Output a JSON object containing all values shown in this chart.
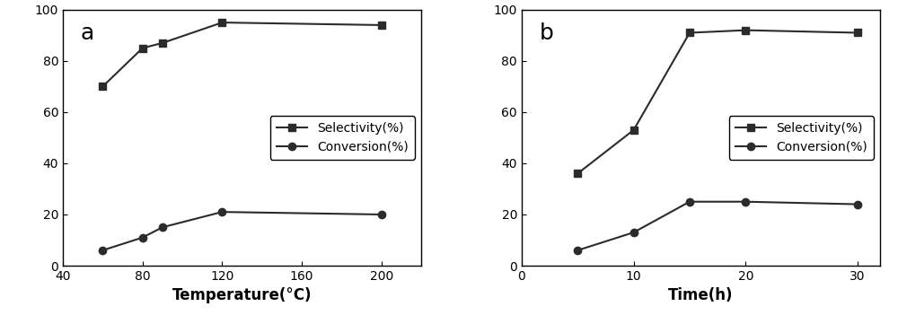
{
  "chart_a": {
    "label": "a",
    "xlabel": "Temperature(°C)",
    "selectivity_x": [
      60,
      80,
      90,
      120,
      200
    ],
    "selectivity_y": [
      70,
      85,
      87,
      95,
      94
    ],
    "conversion_x": [
      60,
      80,
      90,
      120,
      200
    ],
    "conversion_y": [
      6,
      11,
      15,
      21,
      20
    ],
    "xlim": [
      40,
      220
    ],
    "xticks": [
      40,
      80,
      120,
      160,
      200
    ],
    "ylim": [
      0,
      100
    ],
    "yticks": [
      0,
      20,
      40,
      60,
      80,
      100
    ]
  },
  "chart_b": {
    "label": "b",
    "xlabel": "Time(h)",
    "selectivity_x": [
      5,
      10,
      15,
      20,
      30
    ],
    "selectivity_y": [
      36,
      53,
      91,
      92,
      91
    ],
    "conversion_x": [
      5,
      10,
      15,
      20,
      30
    ],
    "conversion_y": [
      6,
      13,
      25,
      25,
      24
    ],
    "xlim": [
      0,
      32
    ],
    "xticks": [
      0,
      10,
      20,
      30
    ],
    "ylim": [
      0,
      100
    ],
    "yticks": [
      0,
      20,
      40,
      60,
      80,
      100
    ]
  },
  "line_color": "#2b2b2b",
  "selectivity_marker": "s",
  "conversion_marker": "o",
  "marker_size": 6,
  "line_width": 1.5,
  "legend_selectivity": "Selectivity(%)",
  "legend_conversion": "Conversion(%)",
  "xlabel_fontsize": 12,
  "tick_fontsize": 10,
  "legend_fontsize": 10,
  "subplot_label_fontsize": 18,
  "background_color": "#ffffff"
}
